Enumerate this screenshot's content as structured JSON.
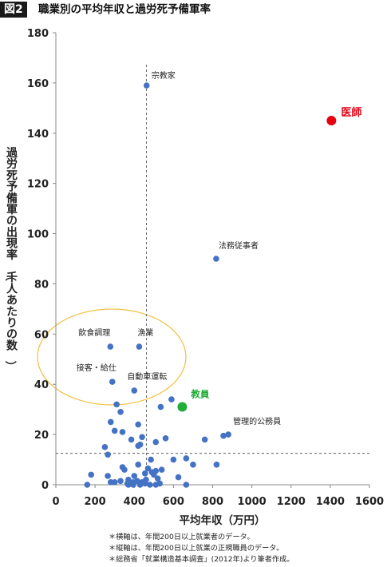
{
  "header": {
    "figure_badge": "図2",
    "title": "職業別の平均年収と過労死予備軍率"
  },
  "notes": [
    "＊横軸は、年間200日以上就業者のデータ。",
    "＊縦軸は、年間200日以上就業の正規職員のデータ。",
    "＊総務省「就業構造基本調査」(2012年)より筆者作成。"
  ],
  "chart_data": {
    "type": "scatter",
    "title": "職業別の平均年収と過労死予備軍率",
    "xlabel": "平均年収（万円）",
    "ylabel": "過労死予備軍の出現率（千人あたりの数）",
    "xlim": [
      0,
      1600
    ],
    "ylim": [
      0,
      180
    ],
    "xticks": [
      0,
      200,
      400,
      600,
      800,
      1000,
      1200,
      1400,
      1600
    ],
    "yticks": [
      0,
      20,
      40,
      60,
      80,
      100,
      120,
      140,
      160,
      180
    ],
    "grid": false,
    "reference_lines": {
      "vertical_x": 462,
      "horizontal_y": 12.5
    },
    "colors": {
      "default": "#4472c4",
      "highlight_doctor": "#e60012",
      "highlight_teacher": "#22ac38",
      "ellipse": "#f0c040"
    },
    "labeled_points": [
      {
        "label": "宗教家",
        "x": 463,
        "y": 159,
        "color": "#4472c4"
      },
      {
        "label": "医師",
        "x": 1406,
        "y": 145,
        "color": "#e60012"
      },
      {
        "label": "法務従事者",
        "x": 818,
        "y": 90,
        "color": "#4472c4"
      },
      {
        "label": "飲食調理",
        "x": 278,
        "y": 55,
        "color": "#4472c4"
      },
      {
        "label": "漁業",
        "x": 425,
        "y": 55,
        "color": "#4472c4"
      },
      {
        "label": "接客・給仕",
        "x": 288,
        "y": 41,
        "color": "#4472c4"
      },
      {
        "label": "自動車運転",
        "x": 400,
        "y": 37.5,
        "color": "#4472c4"
      },
      {
        "label": "教員",
        "x": 645,
        "y": 31,
        "color": "#22ac38"
      },
      {
        "label": "管理的公務員",
        "x": 880,
        "y": 20,
        "color": "#4472c4"
      }
    ],
    "points": [
      [
        590,
        34
      ],
      [
        535,
        31
      ],
      [
        310,
        32
      ],
      [
        330,
        29
      ],
      [
        280,
        25
      ],
      [
        420,
        24
      ],
      [
        300,
        21.5
      ],
      [
        340,
        21
      ],
      [
        855,
        19.5
      ],
      [
        440,
        19
      ],
      [
        560,
        18.5
      ],
      [
        760,
        18
      ],
      [
        385,
        18
      ],
      [
        510,
        17
      ],
      [
        430,
        16
      ],
      [
        250,
        15
      ],
      [
        265,
        12
      ],
      [
        420,
        15.5
      ],
      [
        600,
        10
      ],
      [
        665,
        10.5
      ],
      [
        485,
        10
      ],
      [
        700,
        8
      ],
      [
        820,
        8
      ],
      [
        420,
        8
      ],
      [
        340,
        7
      ],
      [
        470,
        6.5
      ],
      [
        540,
        6
      ],
      [
        350,
        6
      ],
      [
        490,
        5
      ],
      [
        510,
        5.5
      ],
      [
        455,
        4.5
      ],
      [
        500,
        4
      ],
      [
        180,
        4
      ],
      [
        400,
        3.5
      ],
      [
        265,
        3.5
      ],
      [
        625,
        3
      ],
      [
        520,
        2.5
      ],
      [
        330,
        1.5
      ],
      [
        415,
        1.5
      ],
      [
        280,
        1
      ],
      [
        300,
        1
      ],
      [
        370,
        2
      ],
      [
        395,
        1
      ],
      [
        440,
        1
      ],
      [
        455,
        0.5
      ],
      [
        365,
        0.5
      ],
      [
        395,
        0
      ],
      [
        160,
        0
      ],
      [
        460,
        2
      ],
      [
        480,
        0
      ],
      [
        530,
        0.5
      ],
      [
        665,
        0
      ],
      [
        430,
        0
      ],
      [
        510,
        0
      ],
      [
        370,
        0
      ]
    ]
  }
}
